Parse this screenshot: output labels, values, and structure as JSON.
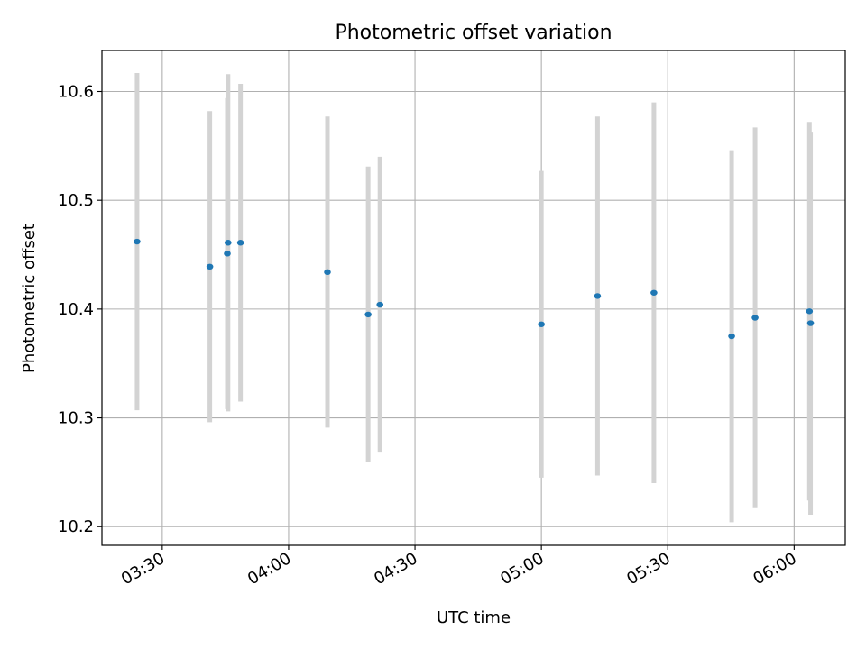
{
  "chart_data": {
    "type": "scatter",
    "title": "Photometric offset variation",
    "xlabel": "UTC time",
    "ylabel": "Photometric offset",
    "xlim": [
      "03:15:41",
      "06:12:08"
    ],
    "ylim": [
      10.1828,
      10.6377
    ],
    "x_ticks": [
      "03:30",
      "04:00",
      "04:30",
      "05:00",
      "05:30",
      "06:00"
    ],
    "y_ticks": [
      10.2,
      10.3,
      10.4,
      10.5,
      10.6
    ],
    "y_tick_labels": [
      "10.2",
      "10.3",
      "10.4",
      "10.5",
      "10.6"
    ],
    "grid": true,
    "marker_color": "#1f77b4",
    "errorbar_color": "#d3d3d3",
    "points": [
      {
        "t": "03:24:01",
        "y": 10.462,
        "err": 0.155
      },
      {
        "t": "03:41:18",
        "y": 10.439,
        "err": 0.143
      },
      {
        "t": "03:45:37",
        "y": 10.461,
        "err": 0.155
      },
      {
        "t": "03:45:27",
        "y": 10.451,
        "err": 0.143
      },
      {
        "t": "03:48:35",
        "y": 10.461,
        "err": 0.146
      },
      {
        "t": "04:09:13",
        "y": 10.434,
        "err": 0.143
      },
      {
        "t": "04:18:53",
        "y": 10.395,
        "err": 0.136
      },
      {
        "t": "04:21:41",
        "y": 10.404,
        "err": 0.136
      },
      {
        "t": "05:00:00",
        "y": 10.386,
        "err": 0.141
      },
      {
        "t": "05:13:20",
        "y": 10.412,
        "err": 0.165
      },
      {
        "t": "05:26:43",
        "y": 10.415,
        "err": 0.175
      },
      {
        "t": "05:45:10",
        "y": 10.375,
        "err": 0.171
      },
      {
        "t": "05:50:44",
        "y": 10.392,
        "err": 0.175
      },
      {
        "t": "06:03:38",
        "y": 10.398,
        "err": 0.174
      },
      {
        "t": "06:03:54",
        "y": 10.387,
        "err": 0.176
      }
    ]
  }
}
